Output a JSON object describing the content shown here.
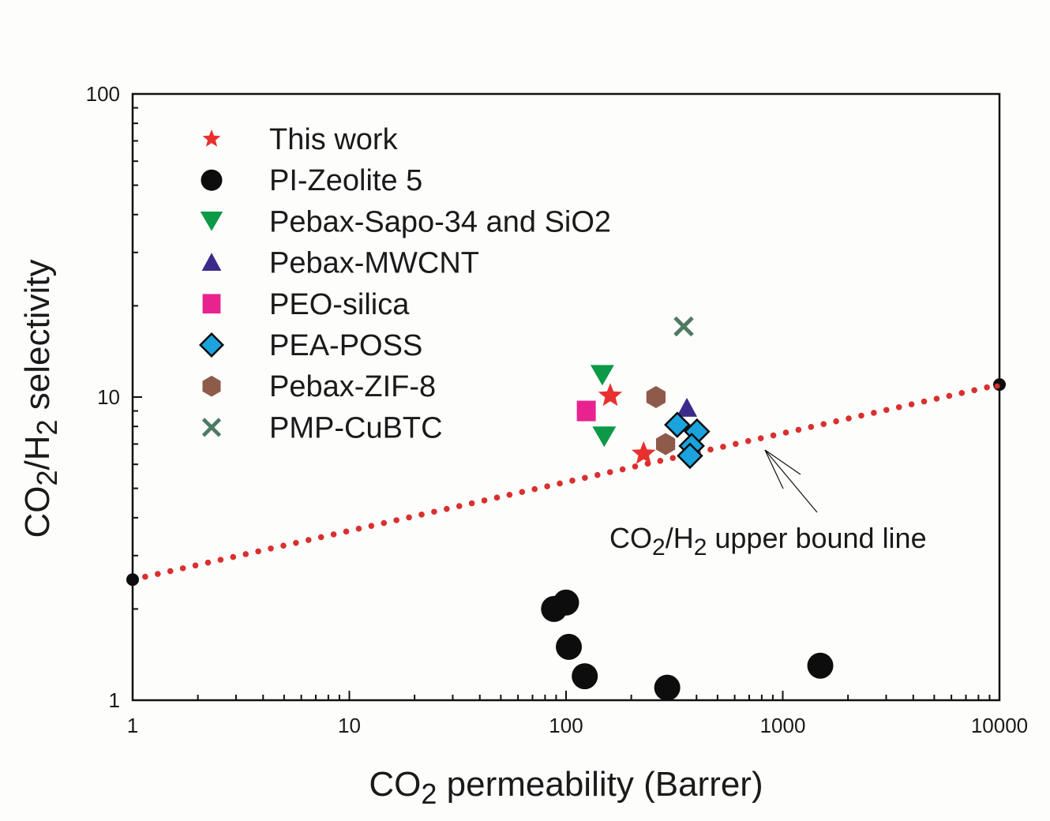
{
  "chart_data": {
    "type": "scatter",
    "title": "",
    "xlabel": "CO2 permeability (Barrer)",
    "xlabel_parts": {
      "pre": "CO",
      "sub": "2",
      "post": " permeability (Barrer)"
    },
    "ylabel": "CO2/H2 selectivity",
    "ylabel_parts": {
      "a": "CO",
      "sub1": "2",
      "b": "/H",
      "sub2": "2",
      "c": " selectivity"
    },
    "xscale": "log",
    "yscale": "log",
    "xlim": [
      1,
      10000
    ],
    "ylim": [
      1,
      100
    ],
    "x_ticks": [
      1,
      10,
      100,
      1000,
      10000
    ],
    "x_tick_labels": [
      "1",
      "10",
      "100",
      "1000",
      "10000"
    ],
    "y_ticks": [
      1,
      10,
      100
    ],
    "y_tick_labels": [
      "1",
      "10",
      "100"
    ],
    "grid": false,
    "legend_position": "top-left",
    "series": [
      {
        "name": "This work",
        "marker": "star",
        "color": "#e8302e",
        "points": [
          [
            160,
            10.1
          ],
          [
            228,
            6.5
          ]
        ]
      },
      {
        "name": "PI-Zeolite 5",
        "marker": "circle",
        "color": "#0d0d0d",
        "points": [
          [
            88,
            2.0
          ],
          [
            100,
            2.1
          ],
          [
            103,
            1.5
          ],
          [
            122,
            1.2
          ],
          [
            293,
            1.1
          ],
          [
            1490,
            1.3
          ]
        ]
      },
      {
        "name": "Pebax-Sapo-34 and SiO2",
        "marker": "triangle-down",
        "color": "#0d9a48",
        "points": [
          [
            147,
            11.8
          ],
          [
            150,
            7.4
          ]
        ]
      },
      {
        "name": "Pebax-MWCNT",
        "marker": "triangle-up",
        "color": "#3b2a8a",
        "points": [
          [
            361,
            9.2
          ]
        ]
      },
      {
        "name": "PEO-silica",
        "marker": "square",
        "color": "#e8238f",
        "points": [
          [
            124,
            9.0
          ]
        ]
      },
      {
        "name": "PEA-POSS",
        "marker": "diamond",
        "color": "#1aa3dc",
        "edge": "#0d0d0d",
        "points": [
          [
            402,
            7.7
          ],
          [
            326,
            8.1
          ],
          [
            380,
            6.9
          ],
          [
            373,
            6.4
          ]
        ]
      },
      {
        "name": "Pebax-ZIF-8",
        "marker": "hexagon",
        "color": "#8e5a4a",
        "points": [
          [
            260,
            10.0
          ],
          [
            288,
            7.0
          ]
        ]
      },
      {
        "name": "PMP-CuBTC",
        "marker": "x",
        "color": "#4e7a64",
        "points": [
          [
            349,
            17.1
          ]
        ]
      }
    ],
    "upper_bound": {
      "style": "dotted",
      "color": "#d9302e",
      "endpoints": [
        [
          1,
          2.5
        ],
        [
          10000,
          11.0
        ]
      ],
      "endpoint_color": "#0d0d0d"
    },
    "annotations": [
      {
        "text": "CO2/H2 upper bound line",
        "parts": {
          "a": "CO",
          "sub1": "2",
          "b": "/H",
          "sub2": "2",
          "c": " upper bound line"
        },
        "arrow_target": [
          800,
          7.5
        ]
      }
    ]
  }
}
